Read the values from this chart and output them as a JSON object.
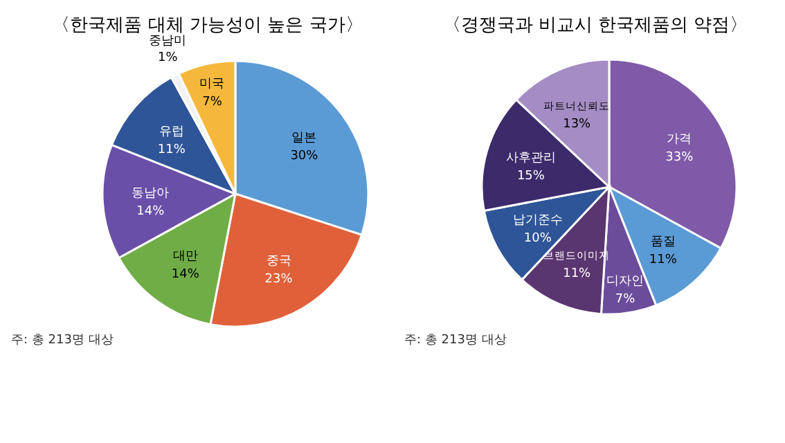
{
  "chart_data": [
    {
      "type": "pie",
      "title": "〈한국제품 대체 가능성이 높은 국가〉",
      "categories": [
        "일본",
        "중국",
        "대만",
        "동남아",
        "유럽",
        "중남미",
        "미국"
      ],
      "values": [
        30,
        23,
        14,
        14,
        11,
        1,
        7
      ],
      "value_labels": [
        "30%",
        "23%",
        "14%",
        "14%",
        "11%",
        "1%",
        "7%"
      ],
      "colors": [
        "#5b9bd5",
        "#e0603a",
        "#70ad47",
        "#6a4fa8",
        "#2e5597",
        "#f2f2f2",
        "#f6b83c"
      ],
      "annotations": [
        "주: 총 213명 대상"
      ]
    },
    {
      "type": "pie",
      "title": "〈경쟁국과 비교시 한국제품의 약점〉",
      "categories": [
        "가격",
        "품질",
        "디자인",
        "브랜드이미지",
        "납기준수",
        "사후관리",
        "파트너신뢰도"
      ],
      "values": [
        33,
        11,
        7,
        11,
        10,
        15,
        13
      ],
      "value_labels": [
        "33%",
        "11%",
        "7%",
        "11%",
        "10%",
        "15%",
        "13%"
      ],
      "colors": [
        "#7f5aa8",
        "#5b9bd5",
        "#6b4c9a",
        "#5a3670",
        "#2e5597",
        "#3c2a6b",
        "#a48cc4"
      ],
      "annotations": [
        "주: 총 213명 대상"
      ]
    }
  ]
}
